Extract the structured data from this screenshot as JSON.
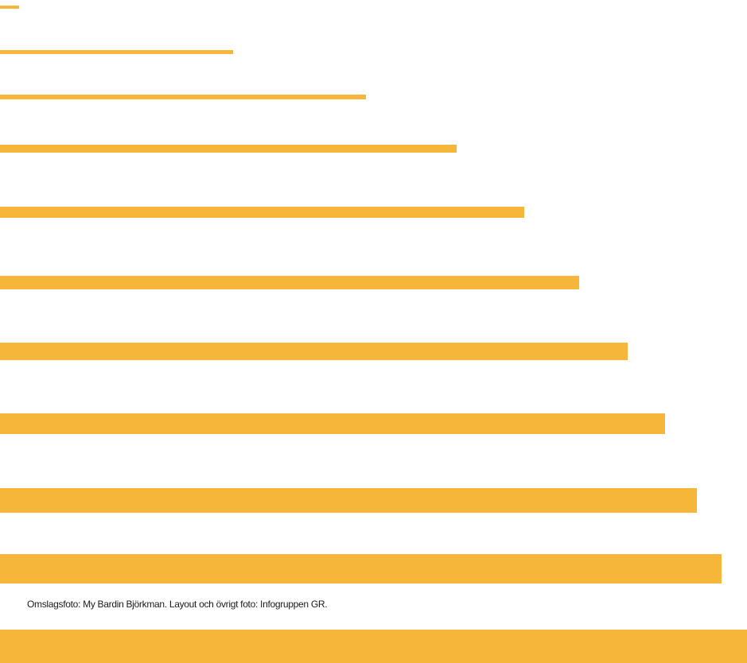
{
  "colors": {
    "stripe": "#F6B63A",
    "text": "#1a1a1a",
    "background": "#ffffff"
  },
  "stripes": [
    {
      "id": 1,
      "length_fraction": 0.026
    },
    {
      "id": 2,
      "length_fraction": 0.312
    },
    {
      "id": 3,
      "length_fraction": 0.49
    },
    {
      "id": 4,
      "length_fraction": 0.611
    },
    {
      "id": 5,
      "length_fraction": 0.702
    },
    {
      "id": 6,
      "length_fraction": 0.775
    },
    {
      "id": 7,
      "length_fraction": 0.84
    },
    {
      "id": 8,
      "length_fraction": 0.89
    },
    {
      "id": 9,
      "length_fraction": 0.933
    },
    {
      "id": 10,
      "length_fraction": 0.966
    }
  ],
  "credit_line": "Omslagsfoto: My Bardin Björkman. Layout och övrigt foto: Infogruppen GR."
}
